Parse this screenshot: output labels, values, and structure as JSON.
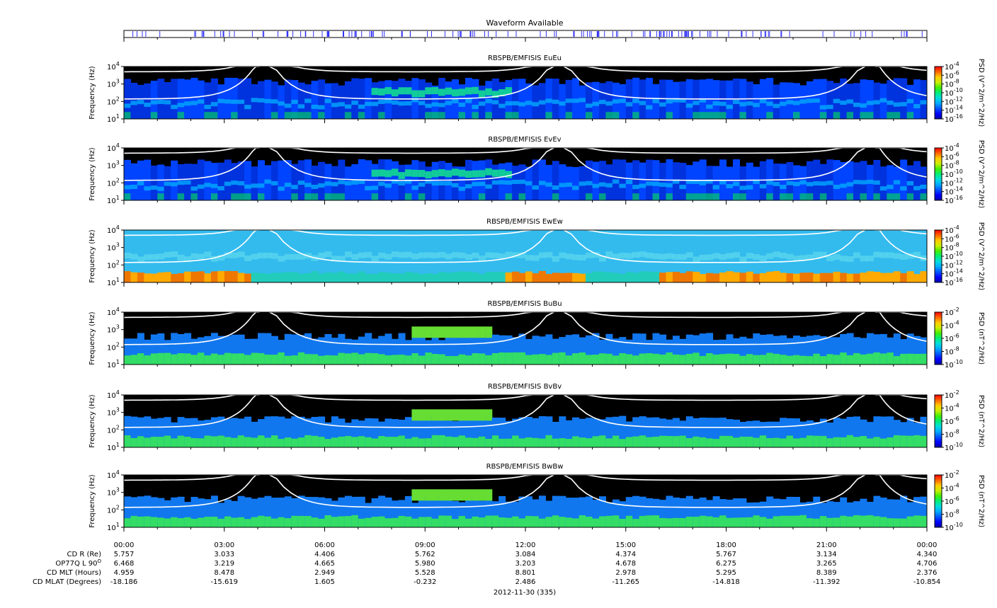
{
  "header": {
    "title": "Waveform Available"
  },
  "date_label": "2012-11-30 (335)",
  "colors": {
    "waveform_tick": "#3333ff",
    "background": "#000000",
    "ew_background": "#33bbee",
    "curve": "#ffffff",
    "colormap": [
      "#0000aa",
      "#0000ff",
      "#0055ff",
      "#00aaff",
      "#00dddd",
      "#00ee77",
      "#44ee00",
      "#ccee00",
      "#ffcc00",
      "#ff6600",
      "#ff0000"
    ]
  },
  "chart_data": {
    "type": "heatmap",
    "x": {
      "ticks": [
        "00:00",
        "03:00",
        "06:00",
        "09:00",
        "12:00",
        "15:00",
        "18:00",
        "21:00",
        "00:00"
      ],
      "range_hours": [
        0,
        24
      ]
    },
    "y": {
      "label": "Frequency (Hz)",
      "scale": "log",
      "range": [
        10,
        10000
      ],
      "ticks": [
        {
          "base": "10",
          "exp": "1"
        },
        {
          "base": "10",
          "exp": "2"
        },
        {
          "base": "10",
          "exp": "3"
        },
        {
          "base": "10",
          "exp": "4"
        }
      ]
    },
    "panels": [
      {
        "title": "RBSPB/EMFISIS  EuEu",
        "colorbar_label": "PSD (V^2/m^2/Hz)",
        "colorbar_ticks": [
          {
            "base": "10",
            "exp": "-4"
          },
          {
            "base": "10",
            "exp": "-6"
          },
          {
            "base": "10",
            "exp": "-8"
          },
          {
            "base": "10",
            "exp": "-10"
          },
          {
            "base": "10",
            "exp": "-12"
          },
          {
            "base": "10",
            "exp": "-14"
          },
          {
            "base": "10",
            "exp": "-16"
          }
        ]
      },
      {
        "title": "RBSPB/EMFISIS  EvEv",
        "colorbar_label": "PSD (V^2/m^2/Hz)",
        "colorbar_ticks": [
          {
            "base": "10",
            "exp": "-4"
          },
          {
            "base": "10",
            "exp": "-6"
          },
          {
            "base": "10",
            "exp": "-8"
          },
          {
            "base": "10",
            "exp": "-10"
          },
          {
            "base": "10",
            "exp": "-12"
          },
          {
            "base": "10",
            "exp": "-14"
          },
          {
            "base": "10",
            "exp": "-16"
          }
        ]
      },
      {
        "title": "RBSPB/EMFISIS  EwEw",
        "colorbar_label": "PSD (V^2/m^2/Hz)",
        "colorbar_ticks": [
          {
            "base": "10",
            "exp": "-4"
          },
          {
            "base": "10",
            "exp": "-6"
          },
          {
            "base": "10",
            "exp": "-8"
          },
          {
            "base": "10",
            "exp": "-10"
          },
          {
            "base": "10",
            "exp": "-12"
          },
          {
            "base": "10",
            "exp": "-14"
          },
          {
            "base": "10",
            "exp": "-16"
          }
        ]
      },
      {
        "title": "RBSPB/EMFISIS  BuBu",
        "colorbar_label": "PSD (nT^2/Hz)",
        "colorbar_ticks": [
          {
            "base": "10",
            "exp": "-2"
          },
          {
            "base": "10",
            "exp": "-4"
          },
          {
            "base": "10",
            "exp": "-6"
          },
          {
            "base": "10",
            "exp": "-8"
          },
          {
            "base": "10",
            "exp": "-10"
          }
        ]
      },
      {
        "title": "RBSPB/EMFISIS  BvBv",
        "colorbar_label": "PSD (nT^2/Hz)",
        "colorbar_ticks": [
          {
            "base": "10",
            "exp": "-2"
          },
          {
            "base": "10",
            "exp": "-4"
          },
          {
            "base": "10",
            "exp": "-6"
          },
          {
            "base": "10",
            "exp": "-8"
          },
          {
            "base": "10",
            "exp": "-10"
          }
        ]
      },
      {
        "title": "RBSPB/EMFISIS  BwBw",
        "colorbar_label": "PSD (nT^2/Hz)",
        "colorbar_ticks": [
          {
            "base": "10",
            "exp": "-2"
          },
          {
            "base": "10",
            "exp": "-4"
          },
          {
            "base": "10",
            "exp": "-6"
          },
          {
            "base": "10",
            "exp": "-8"
          },
          {
            "base": "10",
            "exp": "-10"
          }
        ]
      }
    ],
    "ephemeris": [
      {
        "label": "CD R (Re)",
        "values": [
          "5.757",
          "3.033",
          "4.406",
          "5.762",
          "3.084",
          "4.374",
          "5.767",
          "3.134",
          "4.340"
        ]
      },
      {
        "label": "OP77Q L 90",
        "label_sup": "O",
        "values": [
          "6.468",
          "3.219",
          "4.665",
          "5.980",
          "3.203",
          "4.678",
          "6.275",
          "3.265",
          "4.706"
        ]
      },
      {
        "label": "CD MLT (Hours)",
        "values": [
          "4.959",
          "8.478",
          "2.949",
          "5.528",
          "8.801",
          "2.978",
          "5.295",
          "8.389",
          "2.376"
        ]
      },
      {
        "label": "CD MLAT (Degrees)",
        "values": [
          "-18.186",
          "-15.619",
          "1.605",
          "-0.232",
          "2.486",
          "-11.265",
          "-14.818",
          "-11.392",
          "-10.854"
        ]
      }
    ]
  }
}
